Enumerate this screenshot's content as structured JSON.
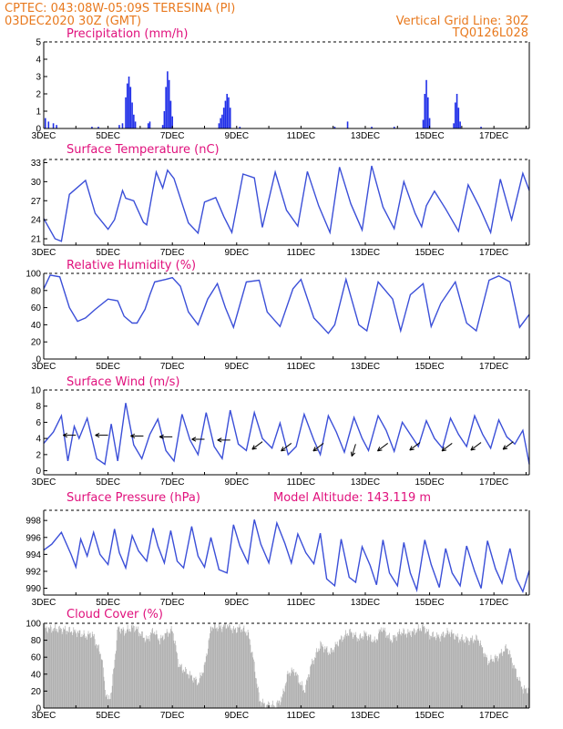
{
  "header": {
    "line1": "CPTEC:  043:08W-05:09S  TERESINA (PI)",
    "line2": "03DEC2020 30Z (GMT)",
    "right1": "Vertical Grid Line: 30Z",
    "right2": "TQ0126L028"
  },
  "x_ticks": [
    "3DEC",
    "5DEC",
    "7DEC",
    "9DEC",
    "11DEC",
    "13DEC",
    "15DEC",
    "17DEC"
  ],
  "colors": {
    "line": "#3b4fd8",
    "bar": "#1f2ee8",
    "cloud": "#a9a9a9",
    "header": "#e8791e",
    "title": "#e0107c"
  },
  "chart_data": [
    {
      "type": "bar",
      "title": "Precipitation (mm/h)",
      "ylim": [
        0,
        5
      ],
      "yticks": [
        0,
        1,
        2,
        3,
        4,
        5
      ],
      "x_unit": "day offset from 3DEC",
      "values": [
        [
          0.05,
          0.6
        ],
        [
          0.15,
          0.4
        ],
        [
          0.3,
          0.3
        ],
        [
          0.4,
          0.2
        ],
        [
          1.5,
          0.1
        ],
        [
          1.7,
          0.1
        ],
        [
          2.35,
          0.2
        ],
        [
          2.45,
          0.3
        ],
        [
          2.55,
          1.8
        ],
        [
          2.6,
          2.6
        ],
        [
          2.65,
          3.0
        ],
        [
          2.7,
          2.4
        ],
        [
          2.75,
          1.5
        ],
        [
          2.8,
          0.8
        ],
        [
          2.85,
          0.4
        ],
        [
          3.25,
          0.3
        ],
        [
          3.3,
          0.4
        ],
        [
          3.7,
          0.2
        ],
        [
          3.75,
          1.0
        ],
        [
          3.8,
          2.4
        ],
        [
          3.85,
          3.3
        ],
        [
          3.9,
          2.8
        ],
        [
          3.95,
          1.6
        ],
        [
          4.0,
          0.7
        ],
        [
          5.45,
          0.3
        ],
        [
          5.5,
          0.6
        ],
        [
          5.55,
          0.8
        ],
        [
          5.6,
          1.2
        ],
        [
          5.65,
          1.6
        ],
        [
          5.7,
          2.0
        ],
        [
          5.75,
          1.8
        ],
        [
          5.8,
          1.2
        ],
        [
          6.1,
          0.1
        ],
        [
          9.05,
          0.1
        ],
        [
          9.45,
          0.4
        ],
        [
          10.2,
          0.1
        ],
        [
          10.9,
          0.1
        ],
        [
          11.8,
          0.5
        ],
        [
          11.85,
          2.0
        ],
        [
          11.9,
          2.8
        ],
        [
          11.95,
          1.8
        ],
        [
          12.0,
          0.6
        ],
        [
          12.75,
          0.3
        ],
        [
          12.8,
          1.5
        ],
        [
          12.85,
          2.0
        ],
        [
          12.9,
          1.2
        ],
        [
          12.95,
          0.4
        ],
        [
          13.6,
          0.1
        ]
      ]
    },
    {
      "type": "line",
      "title": "Surface Temperature (nC)",
      "ylim": [
        20,
        33.5
      ],
      "yticks": [
        21,
        24,
        27,
        30,
        33
      ],
      "x": [
        0,
        0.35,
        0.55,
        0.8,
        1.3,
        1.6,
        2.0,
        2.2,
        2.45,
        2.55,
        2.8,
        3.1,
        3.2,
        3.35,
        3.5,
        3.7,
        3.85,
        4.05,
        4.5,
        4.8,
        5.0,
        5.35,
        5.6,
        5.85,
        6.2,
        6.55,
        6.8,
        7.2,
        7.55,
        7.9,
        8.2,
        8.55,
        8.9,
        9.2,
        9.55,
        9.9,
        10.2,
        10.55,
        10.9,
        11.2,
        11.55,
        11.75,
        11.9,
        12.15,
        12.5,
        12.9,
        13.2,
        13.55,
        13.9,
        14.2,
        14.55,
        14.9,
        15.1
      ],
      "values": [
        24.2,
        21.0,
        20.6,
        28.0,
        30.2,
        25.0,
        22.5,
        24.0,
        28.6,
        27.4,
        27.0,
        23.6,
        23.2,
        27.4,
        31.5,
        29.0,
        31.8,
        30.5,
        23.5,
        21.9,
        26.8,
        27.5,
        24.5,
        22.0,
        31.2,
        30.6,
        22.8,
        31.5,
        25.5,
        23.0,
        31.6,
        26.2,
        22.0,
        32.3,
        26.5,
        22.4,
        32.5,
        26.0,
        22.6,
        30.0,
        25.0,
        22.9,
        26.2,
        28.5,
        25.7,
        22.2,
        29.5,
        26.0,
        22.0,
        30.4,
        24.0,
        31.3,
        28.6
      ]
    },
    {
      "type": "line",
      "title": "Relative Humidity (%)",
      "ylim": [
        0,
        100
      ],
      "yticks": [
        0,
        20,
        40,
        60,
        80,
        100
      ],
      "x": [
        0,
        0.2,
        0.5,
        0.8,
        1.05,
        1.3,
        1.6,
        2.0,
        2.3,
        2.5,
        2.75,
        2.9,
        3.15,
        3.3,
        3.45,
        3.8,
        4.0,
        4.25,
        4.5,
        4.8,
        5.1,
        5.4,
        5.65,
        5.9,
        6.3,
        6.7,
        6.95,
        7.35,
        7.75,
        8.0,
        8.4,
        8.85,
        9.05,
        9.4,
        9.8,
        10.05,
        10.4,
        10.85,
        11.1,
        11.4,
        11.8,
        12.05,
        12.35,
        12.8,
        13.15,
        13.45,
        13.85,
        14.15,
        14.5,
        14.8,
        15.1
      ],
      "values": [
        82,
        98,
        96,
        60,
        44,
        48,
        58,
        70,
        68,
        50,
        42,
        42,
        58,
        75,
        90,
        93,
        95,
        85,
        55,
        40,
        70,
        88,
        60,
        37,
        90,
        92,
        55,
        38,
        82,
        93,
        48,
        30,
        40,
        93,
        40,
        33,
        90,
        70,
        33,
        75,
        88,
        38,
        65,
        90,
        42,
        33,
        92,
        97,
        90,
        37,
        52
      ]
    },
    {
      "type": "line",
      "title": "Surface Wind (m/s)",
      "ylim": [
        -0.5,
        10
      ],
      "yticks": [
        0,
        2,
        4,
        6,
        8,
        10
      ],
      "x": [
        0,
        0.3,
        0.55,
        0.75,
        0.95,
        1.1,
        1.35,
        1.65,
        1.9,
        2.1,
        2.3,
        2.55,
        2.8,
        3.05,
        3.3,
        3.55,
        3.8,
        4.05,
        4.3,
        4.55,
        4.8,
        5.05,
        5.3,
        5.55,
        5.8,
        6.05,
        6.3,
        6.55,
        6.8,
        7.1,
        7.35,
        7.6,
        7.85,
        8.1,
        8.4,
        8.6,
        8.85,
        9.1,
        9.35,
        9.65,
        9.9,
        10.1,
        10.4,
        10.65,
        10.9,
        11.15,
        11.4,
        11.65,
        11.9,
        12.15,
        12.4,
        12.65,
        12.9,
        13.15,
        13.4,
        13.65,
        13.9,
        14.15,
        14.4,
        14.65,
        14.9,
        15.1
      ],
      "values": [
        3.4,
        4.8,
        6.8,
        1.2,
        5.5,
        4.0,
        6.5,
        1.5,
        0.8,
        5.8,
        1.2,
        8.4,
        3.2,
        1.5,
        4.5,
        6.4,
        2.5,
        1.2,
        7.0,
        3.8,
        2.0,
        7.2,
        3.0,
        1.5,
        7.5,
        3.3,
        2.5,
        7.2,
        4.0,
        2.8,
        5.9,
        2.0,
        3.0,
        7.0,
        3.8,
        2.0,
        6.8,
        4.8,
        2.3,
        6.6,
        4.0,
        2.5,
        6.8,
        5.0,
        2.4,
        6.0,
        4.5,
        3.0,
        6.2,
        4.0,
        2.8,
        6.5,
        4.5,
        3.0,
        6.8,
        4.5,
        2.8,
        6.3,
        4.2,
        3.3,
        5.0,
        0.8
      ],
      "arrows": [
        {
          "x": 1.0,
          "speed": 4.4,
          "dir": "W"
        },
        {
          "x": 2.0,
          "speed": 4.4,
          "dir": "W"
        },
        {
          "x": 3.1,
          "speed": 4.3,
          "dir": "W"
        },
        {
          "x": 4.0,
          "speed": 4.2,
          "dir": "W"
        },
        {
          "x": 5.0,
          "speed": 3.9,
          "dir": "W"
        },
        {
          "x": 5.8,
          "speed": 3.8,
          "dir": "W"
        },
        {
          "x": 6.8,
          "speed": 3.6,
          "dir": "SW"
        },
        {
          "x": 7.7,
          "speed": 3.4,
          "dir": "SW"
        },
        {
          "x": 8.7,
          "speed": 3.4,
          "dir": "SW"
        },
        {
          "x": 9.7,
          "speed": 3.3,
          "dir": "S"
        },
        {
          "x": 10.7,
          "speed": 3.4,
          "dir": "SW"
        },
        {
          "x": 11.7,
          "speed": 3.5,
          "dir": "SW"
        },
        {
          "x": 12.7,
          "speed": 3.4,
          "dir": "SW"
        },
        {
          "x": 13.6,
          "speed": 3.5,
          "dir": "SW"
        },
        {
          "x": 14.6,
          "speed": 3.6,
          "dir": "SW"
        }
      ]
    },
    {
      "type": "line",
      "title": "Surface Pressure (hPa)",
      "annotation": "Model Altitude: 143.119 m",
      "ylim": [
        989.2,
        999.2
      ],
      "yticks": [
        990,
        992,
        994,
        996,
        998
      ],
      "x": [
        0,
        0.25,
        0.55,
        0.85,
        1.0,
        1.15,
        1.35,
        1.55,
        1.75,
        2.0,
        2.2,
        2.35,
        2.55,
        2.75,
        2.95,
        3.2,
        3.4,
        3.55,
        3.75,
        3.95,
        4.15,
        4.35,
        4.6,
        4.8,
        5.0,
        5.2,
        5.45,
        5.7,
        5.9,
        6.1,
        6.35,
        6.55,
        6.75,
        7.0,
        7.25,
        7.5,
        7.7,
        7.9,
        8.15,
        8.4,
        8.6,
        8.8,
        9.05,
        9.25,
        9.5,
        9.7,
        9.9,
        10.15,
        10.35,
        10.55,
        10.75,
        11.0,
        11.2,
        11.4,
        11.6,
        11.85,
        12.05,
        12.3,
        12.5,
        12.7,
        12.95,
        13.15,
        13.4,
        13.6,
        13.8,
        14.05,
        14.25,
        14.5,
        14.7,
        14.9,
        15.1
      ],
      "values": [
        994.5,
        995.2,
        996.6,
        994.0,
        992.5,
        995.8,
        993.8,
        996.6,
        994.0,
        992.8,
        997.0,
        994.2,
        992.4,
        996.2,
        994.4,
        993.2,
        997.1,
        995.0,
        993.0,
        996.8,
        993.2,
        992.4,
        997.3,
        993.8,
        992.5,
        996.0,
        992.2,
        991.8,
        997.5,
        995.0,
        993.0,
        998.1,
        995.2,
        993.0,
        997.7,
        995.3,
        993.0,
        996.4,
        994.2,
        992.9,
        996.5,
        991.1,
        990.3,
        995.8,
        991.3,
        990.7,
        994.9,
        992.7,
        990.4,
        995.7,
        991.8,
        990.3,
        995.4,
        991.8,
        989.8,
        995.7,
        992.8,
        990.1,
        994.7,
        991.8,
        990.3,
        995.0,
        992.0,
        990.0,
        995.6,
        992.3,
        990.6,
        994.7,
        991.1,
        989.6,
        992.1
      ]
    },
    {
      "type": "bar",
      "title": "Cloud Cover (%)",
      "ylim": [
        0,
        100
      ],
      "yticks": [
        0,
        20,
        40,
        60,
        80,
        100
      ],
      "x_unit": "day offset from 3DEC",
      "profile": [
        [
          0,
          94
        ],
        [
          0.5,
          93
        ],
        [
          1.0,
          90
        ],
        [
          1.3,
          85
        ],
        [
          1.5,
          88
        ],
        [
          1.8,
          60
        ],
        [
          1.9,
          22
        ],
        [
          2.0,
          8
        ],
        [
          2.1,
          20
        ],
        [
          2.3,
          95
        ],
        [
          2.5,
          90
        ],
        [
          2.8,
          96
        ],
        [
          3.2,
          80
        ],
        [
          3.4,
          92
        ],
        [
          3.6,
          80
        ],
        [
          3.8,
          88
        ],
        [
          4.0,
          92
        ],
        [
          4.2,
          50
        ],
        [
          4.5,
          40
        ],
        [
          4.8,
          30
        ],
        [
          5.0,
          50
        ],
        [
          5.2,
          96
        ],
        [
          5.5,
          95
        ],
        [
          5.7,
          98
        ],
        [
          5.9,
          92
        ],
        [
          6.1,
          95
        ],
        [
          6.35,
          88
        ],
        [
          6.5,
          60
        ],
        [
          6.7,
          10
        ],
        [
          6.9,
          2
        ],
        [
          7.0,
          4
        ],
        [
          7.2,
          2
        ],
        [
          7.4,
          12
        ],
        [
          7.6,
          42
        ],
        [
          7.8,
          44
        ],
        [
          7.9,
          35
        ],
        [
          8.1,
          20
        ],
        [
          8.3,
          50
        ],
        [
          8.6,
          75
        ],
        [
          8.9,
          65
        ],
        [
          9.2,
          80
        ],
        [
          9.5,
          90
        ],
        [
          9.8,
          82
        ],
        [
          10.0,
          88
        ],
        [
          10.3,
          78
        ],
        [
          10.5,
          95
        ],
        [
          10.8,
          80
        ],
        [
          11.1,
          90
        ],
        [
          11.3,
          88
        ],
        [
          11.5,
          90
        ],
        [
          11.8,
          96
        ],
        [
          12.0,
          86
        ],
        [
          12.3,
          84
        ],
        [
          12.6,
          90
        ],
        [
          12.9,
          82
        ],
        [
          13.2,
          80
        ],
        [
          13.5,
          82
        ],
        [
          13.8,
          55
        ],
        [
          14.1,
          60
        ],
        [
          14.4,
          72
        ],
        [
          14.7,
          40
        ],
        [
          14.9,
          22
        ],
        [
          15.1,
          22
        ]
      ]
    }
  ]
}
